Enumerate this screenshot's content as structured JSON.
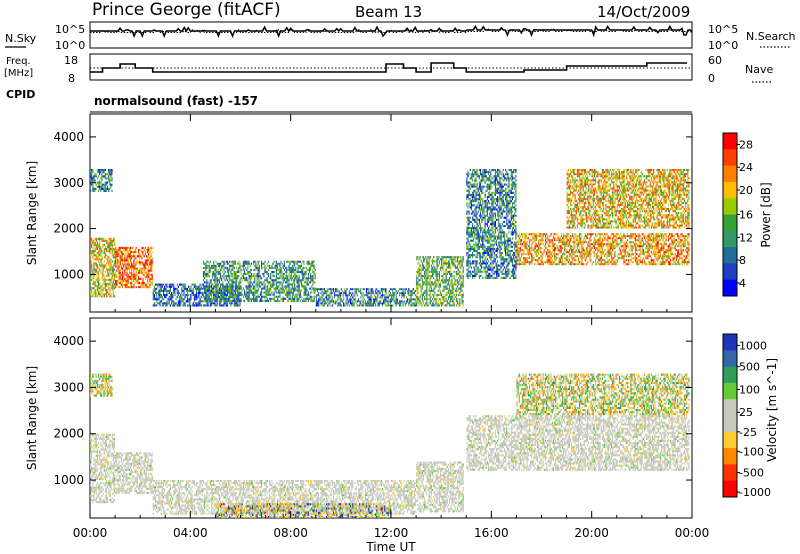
{
  "header": {
    "station": "Prince George (fitACF)",
    "beam": "Beam 13",
    "date": "14/Oct/2009"
  },
  "labels": {
    "nsky": "N.Sky",
    "nsearch": "N.Search",
    "freq_line1": "Freq.",
    "freq_line2": "[MHz]",
    "nave": "Nave",
    "cpid": "CPID",
    "cpid_value": "normalsound (fast) -157"
  },
  "noise_panel": {
    "left_ticks": [
      "10^5",
      "10^0"
    ],
    "right_ticks": [
      "10^5",
      "10^0"
    ]
  },
  "freq_panel": {
    "left_ticks": [
      "18",
      "8"
    ],
    "right_ticks": [
      "60",
      "0"
    ]
  },
  "chart_data": [
    {
      "type": "heatmap",
      "name": "power",
      "ylabel": "Slant Range [km]",
      "ylim": [
        180,
        4500
      ],
      "y_ticks": [
        "1000",
        "2000",
        "3000",
        "4000"
      ],
      "colorbar_label": "Power [dB]",
      "colorbar_ticks": [
        "28",
        "24",
        "20",
        "16",
        "12",
        "8",
        "4"
      ],
      "colorbar_colors": [
        "#ff0000",
        "#ff4000",
        "#ff7f00",
        "#ffbf00",
        "#99cc00",
        "#33a333",
        "#339966",
        "#1f6e9a",
        "#1f3fbf",
        "#0000ff"
      ],
      "regions": [
        {
          "t0": 0.0,
          "t1": 1.0,
          "r0": 500,
          "r1": 1800,
          "level": 0.6
        },
        {
          "t0": 0.0,
          "t1": 0.9,
          "r0": 2800,
          "r1": 3300,
          "level": 0.3
        },
        {
          "t0": 1.0,
          "t1": 2.5,
          "r0": 700,
          "r1": 1600,
          "level": 0.8
        },
        {
          "t0": 2.5,
          "t1": 6.0,
          "r0": 300,
          "r1": 800,
          "level": 0.25
        },
        {
          "t0": 4.5,
          "t1": 9.0,
          "r0": 400,
          "r1": 1300,
          "level": 0.35
        },
        {
          "t0": 9.0,
          "t1": 13.0,
          "r0": 300,
          "r1": 700,
          "level": 0.3
        },
        {
          "t0": 13.0,
          "t1": 14.9,
          "r0": 300,
          "r1": 1400,
          "level": 0.45
        },
        {
          "t0": 15.0,
          "t1": 17.0,
          "r0": 900,
          "r1": 3300,
          "level": 0.3
        },
        {
          "t0": 17.0,
          "t1": 23.9,
          "r0": 1200,
          "r1": 1900,
          "level": 0.7
        },
        {
          "t0": 19.0,
          "t1": 23.9,
          "r0": 2000,
          "r1": 3300,
          "level": 0.65
        }
      ]
    },
    {
      "type": "heatmap",
      "name": "velocity",
      "ylabel": "Slant Range [km]",
      "ylim": [
        180,
        4500
      ],
      "y_ticks": [
        "1000",
        "2000",
        "3000",
        "4000"
      ],
      "colorbar_label": "Velocity [m s^-1]",
      "colorbar_ticks": [
        "1000",
        "500",
        "100",
        "25",
        "-25",
        "-100",
        "-500",
        "-1000"
      ],
      "colorbar_colors": [
        "#2233bb",
        "#3366aa",
        "#2f9e5a",
        "#66cc33",
        "#c8c8c0",
        "#c8c8c0",
        "#ffcc33",
        "#ff8800",
        "#ff3300",
        "#ff0000"
      ],
      "regions": [
        {
          "t0": 0.0,
          "t1": 1.0,
          "r0": 500,
          "r1": 2000,
          "level": "ground"
        },
        {
          "t0": 0.0,
          "t1": 0.9,
          "r0": 2800,
          "r1": 3300,
          "level": "orange"
        },
        {
          "t0": 1.0,
          "t1": 2.5,
          "r0": 700,
          "r1": 1600,
          "level": "ground"
        },
        {
          "t0": 2.5,
          "t1": 13.0,
          "r0": 250,
          "r1": 1000,
          "level": "ground"
        },
        {
          "t0": 5.0,
          "t1": 12.0,
          "r0": 180,
          "r1": 500,
          "level": "mixed"
        },
        {
          "t0": 13.0,
          "t1": 14.9,
          "r0": 300,
          "r1": 1400,
          "level": "ground"
        },
        {
          "t0": 15.0,
          "t1": 23.9,
          "r0": 1200,
          "r1": 2400,
          "level": "ground"
        },
        {
          "t0": 17.0,
          "t1": 23.9,
          "r0": 2400,
          "r1": 3300,
          "level": "orange"
        }
      ]
    }
  ],
  "time_axis": {
    "ticks": [
      "00:00",
      "04:00",
      "08:00",
      "12:00",
      "16:00",
      "20:00",
      "00:00"
    ],
    "label": "Time UT",
    "range_hours": [
      0,
      24
    ]
  }
}
